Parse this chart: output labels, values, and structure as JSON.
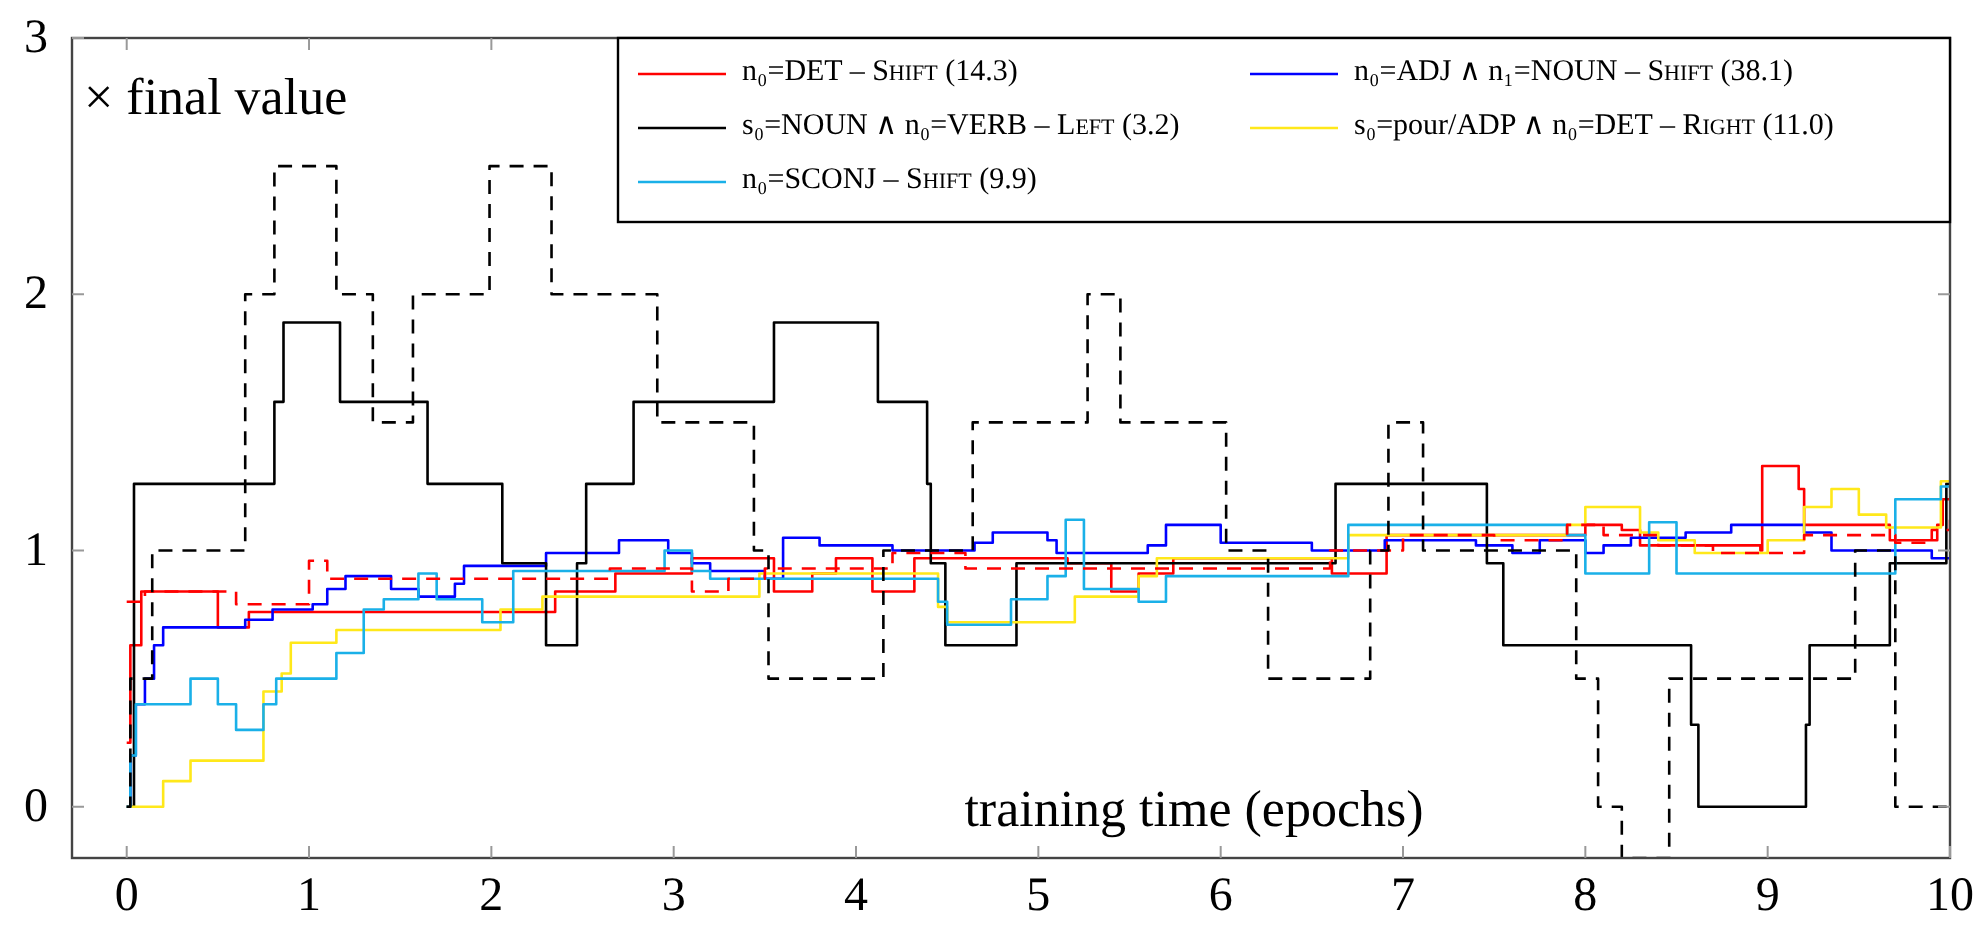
{
  "chart_data": {
    "type": "step",
    "xlabel": "training time (epochs)",
    "annotations": [
      "× final value"
    ],
    "xlim": [
      -0.3,
      10
    ],
    "ylim": [
      -0.2,
      3
    ],
    "xticks": [
      0,
      1,
      2,
      3,
      4,
      5,
      6,
      7,
      8,
      9,
      10
    ],
    "yticks": [
      0,
      1,
      2,
      3
    ],
    "grid": false,
    "legend": "top right",
    "marker": "none",
    "series": [
      {
        "name": "n₀=DET – Shift (14.3)",
        "color": "#ff0000",
        "line_style": "solid",
        "x": [
          0,
          0.02,
          0.08,
          0.5,
          0.67,
          2.35,
          2.68,
          3.1,
          3.55,
          3.76,
          3.89,
          4.09,
          4.32,
          5.16,
          5.4,
          5.55,
          5.74,
          6.61,
          6.91,
          7.9,
          8.0,
          8.2,
          8.3,
          8.96,
          8.97,
          9.17,
          9.2,
          9.67,
          9.93,
          9.96,
          10
        ],
        "values": [
          0.25,
          0.63,
          0.84,
          0.7,
          0.76,
          0.84,
          0.91,
          0.97,
          0.84,
          0.91,
          0.97,
          0.84,
          0.97,
          0.95,
          0.84,
          0.91,
          0.97,
          0.91,
          1.06,
          1.06,
          1.1,
          1.08,
          1.02,
          1.0,
          1.33,
          1.24,
          1.1,
          1.04,
          1.1,
          1.2,
          1.2
        ]
      },
      {
        "name": "n₀=ADJ ∧ n₁=NOUN – Shift (38.1)",
        "color": "#0000ff",
        "line_style": "solid",
        "x": [
          0,
          0.02,
          0.05,
          0.1,
          0.15,
          0.2,
          0.65,
          0.8,
          1.02,
          1.1,
          1.2,
          1.45,
          1.6,
          1.8,
          1.85,
          2.3,
          2.7,
          2.97,
          3.1,
          3.2,
          3.5,
          3.6,
          3.8,
          4.2,
          4.65,
          4.75,
          5.05,
          5.1,
          5.6,
          5.7,
          6.0,
          6.5,
          6.9,
          7.4,
          7.6,
          7.75,
          8.0,
          8.1,
          8.25,
          8.55,
          8.8,
          9.2,
          9.35,
          9.9,
          10
        ],
        "values": [
          0,
          0.2,
          0.4,
          0.5,
          0.63,
          0.7,
          0.73,
          0.77,
          0.79,
          0.85,
          0.9,
          0.85,
          0.82,
          0.87,
          0.94,
          0.99,
          1.04,
          0.99,
          0.95,
          0.92,
          0.89,
          1.05,
          1.02,
          1.0,
          1.03,
          1.07,
          1.04,
          0.99,
          1.02,
          1.1,
          1.03,
          1.0,
          1.04,
          1.02,
          0.99,
          1.04,
          0.99,
          1.02,
          1.05,
          1.07,
          1.1,
          1.07,
          1.0,
          0.97,
          0.97
        ]
      },
      {
        "name": "s₀=NOUN ∧ n₀=VERB – Left (3.2)",
        "color": "#000000",
        "line_style": "solid",
        "x": [
          0,
          0.04,
          0.81,
          0.86,
          1.17,
          1.65,
          2.06,
          2.3,
          2.47,
          2.52,
          2.78,
          3.55,
          4.12,
          4.39,
          4.41,
          4.49,
          4.88,
          6.63,
          7.46,
          7.55,
          8.58,
          8.62,
          9.21,
          9.23,
          9.67,
          9.98,
          10
        ],
        "values": [
          0,
          1.26,
          1.58,
          1.89,
          1.58,
          1.26,
          0.95,
          0.63,
          0.95,
          1.26,
          1.58,
          1.89,
          1.58,
          1.26,
          0.95,
          0.63,
          0.95,
          1.26,
          0.95,
          0.63,
          0.32,
          0,
          0.32,
          0.63,
          0.95,
          1.26,
          1.26
        ]
      },
      {
        "name": "s₀=pour/ADP ∧ n₀=DET – Right (11.0)",
        "color": "#ffe81a",
        "line_style": "solid",
        "x": [
          0,
          0.2,
          0.35,
          0.75,
          0.85,
          0.9,
          1.15,
          2.05,
          2.28,
          3.47,
          4.45,
          4.5,
          5.0,
          5.2,
          5.55,
          5.65,
          6.7,
          7.9,
          8.0,
          8.3,
          8.4,
          8.6,
          9.0,
          9.2,
          9.35,
          9.5,
          9.65,
          9.95,
          10
        ],
        "values": [
          0,
          0.1,
          0.18,
          0.45,
          0.52,
          0.64,
          0.69,
          0.77,
          0.82,
          0.91,
          0.78,
          0.72,
          0.72,
          0.82,
          0.9,
          0.97,
          1.06,
          1.1,
          1.17,
          1.07,
          1.04,
          0.99,
          1.04,
          1.17,
          1.24,
          1.14,
          1.09,
          1.27,
          1.27
        ]
      },
      {
        "name": "n₀=SCONJ – Shift (9.9)",
        "color": "#1ab0e8",
        "line_style": "solid",
        "x": [
          0,
          0.02,
          0.05,
          0.35,
          0.5,
          0.6,
          0.75,
          0.82,
          1.15,
          1.3,
          1.41,
          1.6,
          1.7,
          1.95,
          2.12,
          2.5,
          2.95,
          3.1,
          3.2,
          4.45,
          4.5,
          4.85,
          5.05,
          5.15,
          5.25,
          5.55,
          5.7,
          6.7,
          7.9,
          8.0,
          8.35,
          8.5,
          9.2,
          9.7,
          9.95,
          10
        ],
        "values": [
          0,
          0.2,
          0.4,
          0.5,
          0.4,
          0.3,
          0.4,
          0.5,
          0.6,
          0.77,
          0.81,
          0.91,
          0.81,
          0.72,
          0.92,
          0.92,
          1.0,
          0.92,
          0.89,
          0.8,
          0.71,
          0.81,
          0.9,
          1.12,
          0.85,
          0.8,
          0.9,
          1.1,
          1.06,
          0.91,
          1.11,
          0.91,
          0.91,
          1.2,
          1.25,
          1.25
        ]
      },
      {
        "color": "#ff0000",
        "line_style": "dashed",
        "x": [
          0,
          0.1,
          0.6,
          1.0,
          1.1,
          2.65,
          3.1,
          3.3,
          3.5,
          4.2,
          4.6,
          5.3,
          6.6,
          7.0,
          7.5,
          7.9,
          8.1,
          8.4,
          8.7,
          9.2,
          9.7,
          9.9,
          10
        ],
        "values": [
          0.8,
          0.84,
          0.79,
          0.96,
          0.89,
          0.93,
          0.84,
          0.89,
          0.93,
          0.99,
          0.93,
          0.93,
          1.0,
          1.06,
          1.04,
          1.1,
          1.06,
          1.02,
          0.99,
          1.06,
          1.03,
          1.08,
          1.12
        ]
      },
      {
        "color": "#000000",
        "line_style": "dashed",
        "x": [
          0,
          0.02,
          0.14,
          0.65,
          0.81,
          1.15,
          1.35,
          1.57,
          1.99,
          2.33,
          2.91,
          3.44,
          3.52,
          4.15,
          4.64,
          5.27,
          5.45,
          6.03,
          6.26,
          6.82,
          6.92,
          7.11,
          7.95,
          8.07,
          8.2,
          8.46,
          9.48,
          9.7,
          10
        ],
        "values": [
          0,
          0.5,
          1.0,
          2.0,
          2.5,
          2.0,
          1.5,
          2.0,
          2.5,
          2.0,
          1.5,
          1.0,
          0.5,
          1.0,
          1.5,
          2.0,
          1.5,
          1.0,
          0.5,
          1.0,
          1.5,
          1.0,
          0.5,
          0,
          -0.2,
          0.5,
          1.0,
          0,
          0
        ]
      }
    ]
  }
}
